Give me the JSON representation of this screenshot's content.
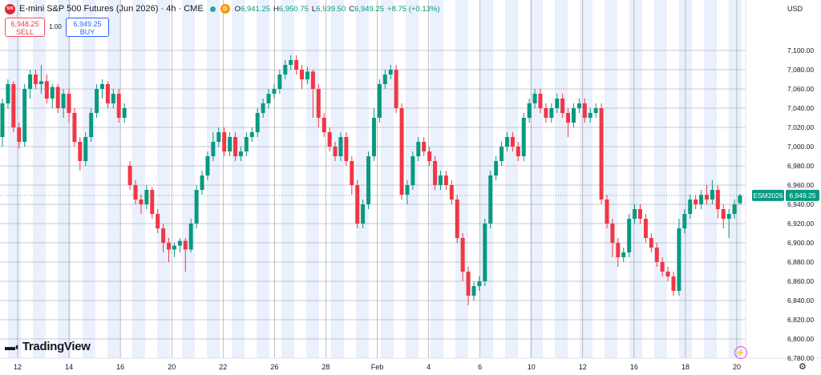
{
  "header": {
    "badge_text": "500",
    "title": "E-mini S&P 500 Futures (Jun 2026) · 4h · CME",
    "delayed_badge": "D",
    "ohlc": {
      "o_label": "O",
      "o_value": "6,941.25",
      "h_label": "H",
      "h_value": "6,950.75",
      "l_label": "L",
      "l_value": "6,939.50",
      "c_label": "C",
      "c_value": "6,949.25",
      "change": "+8.75 (+0.13%)"
    }
  },
  "trade": {
    "sell_price": "6,948.25",
    "sell_label": "SELL",
    "quantity": "1.00",
    "buy_price": "6,949.25",
    "buy_label": "BUY"
  },
  "currency": "USD",
  "branding": "TradingView",
  "colors": {
    "up": "#089981",
    "down": "#f23645",
    "session_band": "#eaf0fc",
    "grid": "#9598a1"
  },
  "chart_data": {
    "type": "candlestick",
    "symbol_label": "ESM2026",
    "last_price": "6,949.25",
    "last_value": 6949.25,
    "ylim": [
      6780,
      7120
    ],
    "y_ticks": [
      7100,
      7080,
      7060,
      7040,
      7020,
      7000,
      6980,
      6960,
      6940,
      6920,
      6900,
      6880,
      6860,
      6840,
      6820,
      6800,
      6780
    ],
    "y_tick_labels": [
      "7,100.00",
      "7,080.00",
      "7,060.00",
      "7,040.00",
      "7,020.00",
      "7,000.00",
      "6,980.00",
      "6,960.00",
      "6,940.00",
      "6,920.00",
      "6,900.00",
      "6,880.00",
      "6,860.00",
      "6,840.00",
      "6,820.00",
      "6,800.00",
      "6,780.00"
    ],
    "x_labels": [
      "12",
      "14",
      "16",
      "20",
      "22",
      "26",
      "28",
      "Feb",
      "4",
      "6",
      "10",
      "12",
      "16",
      "18",
      "20"
    ],
    "candles": [
      [
        7010,
        7045,
        7000,
        7050
      ],
      [
        7045,
        7065,
        7040,
        7070
      ],
      [
        7065,
        7020,
        7015,
        7068
      ],
      [
        7020,
        7005,
        6998,
        7025
      ],
      [
        7005,
        7060,
        7000,
        7065
      ],
      [
        7060,
        7075,
        7050,
        7080
      ],
      [
        7075,
        7065,
        7060,
        7080
      ],
      [
        7065,
        7068,
        7055,
        7085
      ],
      [
        7068,
        7050,
        7045,
        7075
      ],
      [
        7050,
        7062,
        7040,
        7065
      ],
      [
        7062,
        7040,
        7035,
        7065
      ],
      [
        7040,
        7055,
        7030,
        7060
      ],
      [
        7055,
        7035,
        7025,
        7060
      ],
      [
        7035,
        7005,
        7000,
        7040
      ],
      [
        7005,
        6985,
        6975,
        7010
      ],
      [
        6985,
        7010,
        6980,
        7015
      ],
      [
        7010,
        7035,
        7005,
        7040
      ],
      [
        7035,
        7060,
        7030,
        7065
      ],
      [
        7060,
        7065,
        7050,
        7070
      ],
      [
        7065,
        7045,
        7040,
        7068
      ],
      [
        7045,
        7055,
        7040,
        7060
      ],
      [
        7055,
        7030,
        7025,
        7060
      ],
      [
        7030,
        7040,
        7025,
        7045
      ],
      [
        6980,
        6960,
        6955,
        6985
      ],
      [
        6960,
        6945,
        6940,
        6965
      ],
      [
        6945,
        6940,
        6930,
        6950
      ],
      [
        6940,
        6955,
        6935,
        6960
      ],
      [
        6955,
        6930,
        6925,
        6958
      ],
      [
        6930,
        6915,
        6910,
        6935
      ],
      [
        6915,
        6900,
        6890,
        6920
      ],
      [
        6900,
        6893,
        6880,
        6905
      ],
      [
        6893,
        6897,
        6885,
        6900
      ],
      [
        6897,
        6902,
        6890,
        6905
      ],
      [
        6902,
        6893,
        6870,
        6905
      ],
      [
        6893,
        6920,
        6890,
        6925
      ],
      [
        6920,
        6955,
        6915,
        6960
      ],
      [
        6955,
        6970,
        6950,
        6975
      ],
      [
        6970,
        6990,
        6965,
        6995
      ],
      [
        6990,
        7005,
        6985,
        7015
      ],
      [
        7005,
        7015,
        7000,
        7020
      ],
      [
        7015,
        6995,
        6990,
        7020
      ],
      [
        6995,
        7010,
        6990,
        7015
      ],
      [
        7010,
        6990,
        6985,
        7015
      ],
      [
        6990,
        6995,
        6985,
        7000
      ],
      [
        6995,
        7010,
        6990,
        7015
      ],
      [
        7010,
        7015,
        7005,
        7020
      ],
      [
        7015,
        7035,
        7010,
        7040
      ],
      [
        7035,
        7045,
        7030,
        7050
      ],
      [
        7045,
        7055,
        7040,
        7060
      ],
      [
        7055,
        7060,
        7050,
        7065
      ],
      [
        7060,
        7075,
        7055,
        7080
      ],
      [
        7075,
        7085,
        7070,
        7090
      ],
      [
        7085,
        7090,
        7080,
        7095
      ],
      [
        7090,
        7080,
        7075,
        7095
      ],
      [
        7080,
        7070,
        7060,
        7085
      ],
      [
        7070,
        7078,
        7065,
        7083
      ],
      [
        7078,
        7060,
        7030,
        7080
      ],
      [
        7060,
        7030,
        7020,
        7065
      ],
      [
        7030,
        7015,
        7010,
        7035
      ],
      [
        7015,
        7000,
        6995,
        7020
      ],
      [
        7000,
        6990,
        6985,
        7005
      ],
      [
        6990,
        7010,
        6985,
        7015
      ],
      [
        7010,
        6985,
        6980,
        7015
      ],
      [
        6985,
        6960,
        6950,
        6990
      ],
      [
        6960,
        6920,
        6915,
        6965
      ],
      [
        6920,
        6940,
        6915,
        6945
      ],
      [
        6940,
        6990,
        6935,
        6995
      ],
      [
        6990,
        7030,
        6985,
        7040
      ],
      [
        7030,
        7065,
        7025,
        7070
      ],
      [
        7065,
        7075,
        7060,
        7080
      ],
      [
        7075,
        7080,
        7070,
        7085
      ],
      [
        7080,
        7040,
        7035,
        7085
      ],
      [
        7040,
        6950,
        6945,
        7045
      ],
      [
        6950,
        6960,
        6940,
        6965
      ],
      [
        6960,
        6990,
        6955,
        6995
      ],
      [
        6990,
        7005,
        6985,
        7010
      ],
      [
        7005,
        6995,
        6990,
        7010
      ],
      [
        6995,
        6985,
        6980,
        7000
      ],
      [
        6985,
        6960,
        6955,
        6990
      ],
      [
        6960,
        6970,
        6955,
        6975
      ],
      [
        6970,
        6960,
        6955,
        6975
      ],
      [
        6960,
        6945,
        6940,
        6965
      ],
      [
        6945,
        6905,
        6900,
        6950
      ],
      [
        6905,
        6870,
        6860,
        6910
      ],
      [
        6870,
        6845,
        6835,
        6875
      ],
      [
        6845,
        6855,
        6840,
        6860
      ],
      [
        6855,
        6860,
        6850,
        6865
      ],
      [
        6860,
        6920,
        6855,
        6925
      ],
      [
        6920,
        6970,
        6915,
        6975
      ],
      [
        6970,
        6985,
        6965,
        6990
      ],
      [
        6985,
        7000,
        6980,
        7005
      ],
      [
        7000,
        7010,
        6995,
        7015
      ],
      [
        7010,
        7000,
        6995,
        7015
      ],
      [
        7000,
        6990,
        6985,
        7005
      ],
      [
        6990,
        7030,
        6985,
        7035
      ],
      [
        7030,
        7045,
        7025,
        7050
      ],
      [
        7045,
        7055,
        7040,
        7060
      ],
      [
        7055,
        7040,
        7035,
        7060
      ],
      [
        7040,
        7030,
        7025,
        7045
      ],
      [
        7030,
        7040,
        7025,
        7045
      ],
      [
        7040,
        7050,
        7035,
        7055
      ],
      [
        7050,
        7035,
        7030,
        7055
      ],
      [
        7035,
        7025,
        7010,
        7040
      ],
      [
        7025,
        7040,
        7020,
        7045
      ],
      [
        7040,
        7045,
        7035,
        7050
      ],
      [
        7045,
        7030,
        7025,
        7050
      ],
      [
        7030,
        7035,
        7025,
        7040
      ],
      [
        7035,
        7040,
        7030,
        7045
      ],
      [
        7040,
        6945,
        6940,
        7045
      ],
      [
        6945,
        6920,
        6915,
        6950
      ],
      [
        6920,
        6900,
        6885,
        6925
      ],
      [
        6900,
        6885,
        6875,
        6905
      ],
      [
        6885,
        6890,
        6880,
        6895
      ],
      [
        6890,
        6925,
        6885,
        6930
      ],
      [
        6925,
        6935,
        6920,
        6940
      ],
      [
        6935,
        6925,
        6920,
        6940
      ],
      [
        6925,
        6905,
        6900,
        6930
      ],
      [
        6905,
        6895,
        6890,
        6910
      ],
      [
        6895,
        6880,
        6875,
        6900
      ],
      [
        6880,
        6870,
        6865,
        6885
      ],
      [
        6870,
        6865,
        6860,
        6875
      ],
      [
        6865,
        6850,
        6845,
        6870
      ],
      [
        6850,
        6915,
        6845,
        6925
      ],
      [
        6915,
        6930,
        6910,
        6935
      ],
      [
        6930,
        6945,
        6925,
        6950
      ],
      [
        6945,
        6940,
        6935,
        6950
      ],
      [
        6940,
        6950,
        6935,
        6955
      ],
      [
        6950,
        6945,
        6940,
        6960
      ],
      [
        6945,
        6955,
        6940,
        6965
      ],
      [
        6955,
        6935,
        6925,
        6960
      ],
      [
        6935,
        6925,
        6915,
        6940
      ],
      [
        6925,
        6930,
        6905,
        6935
      ],
      [
        6930,
        6940,
        6925,
        6945
      ],
      [
        6941.25,
        6949.25,
        6939.5,
        6950.75
      ]
    ]
  }
}
